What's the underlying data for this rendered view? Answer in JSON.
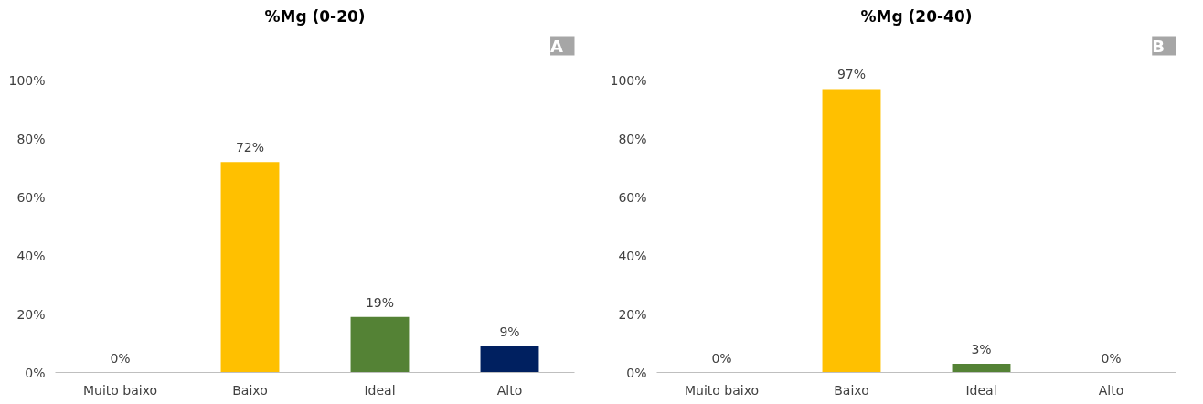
{
  "chart_data": [
    {
      "type": "bar",
      "title": "%Mg (0-20)",
      "annotations": [
        "A"
      ],
      "categories": [
        "Muito baixo",
        "Baixo",
        "Ideal",
        "Alto"
      ],
      "values": [
        0,
        72,
        19,
        9
      ],
      "colors": [
        "#c00000",
        "#ffc000",
        "#548235",
        "#002060"
      ],
      "value_labels": [
        "0%",
        "72%",
        "19%",
        "9%"
      ],
      "ylim": [
        0,
        100
      ],
      "yticks": [
        {
          "value": 0,
          "label": "0%"
        },
        {
          "value": 20,
          "label": "20%"
        },
        {
          "value": 40,
          "label": "40%"
        },
        {
          "value": 60,
          "label": "60%"
        },
        {
          "value": 80,
          "label": "80%"
        },
        {
          "value": 100,
          "label": "100%"
        }
      ],
      "grid": false
    },
    {
      "type": "bar",
      "title": "%Mg (20-40)",
      "annotations": [
        "B"
      ],
      "categories": [
        "Muito baixo",
        "Baixo",
        "Ideal",
        "Alto"
      ],
      "values": [
        0,
        97,
        3,
        0
      ],
      "colors": [
        "#c00000",
        "#ffc000",
        "#548235",
        "#002060"
      ],
      "value_labels": [
        "0%",
        "97%",
        "3%",
        "0%"
      ],
      "ylim": [
        0,
        100
      ],
      "yticks": [
        {
          "value": 0,
          "label": "0%"
        },
        {
          "value": 20,
          "label": "20%"
        },
        {
          "value": 40,
          "label": "40%"
        },
        {
          "value": 60,
          "label": "60%"
        },
        {
          "value": 80,
          "label": "80%"
        },
        {
          "value": 100,
          "label": "100%"
        }
      ],
      "grid": false
    }
  ]
}
